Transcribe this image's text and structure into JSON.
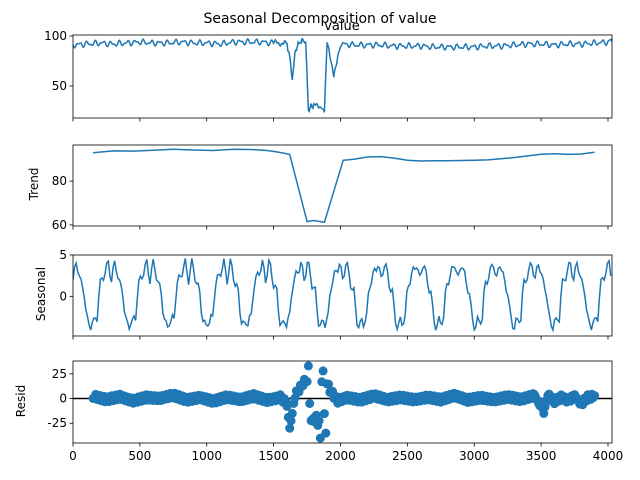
{
  "figure": {
    "title": "Seasonal Decomposition of value"
  },
  "colors": {
    "series": "#1f77b4",
    "axis": "#000000",
    "zero_line": "#000000",
    "background": "#ffffff"
  },
  "chart_data": [
    {
      "type": "line",
      "panel": "observed",
      "title": "value",
      "ylabel": "",
      "xlim": [
        0,
        4030
      ],
      "ylim": [
        18,
        101
      ],
      "yticks": [
        50,
        100
      ],
      "xtick_labels_shown": false,
      "series": [
        {
          "values_description_note_removed": null,
          "x": [
            0,
            100,
            200,
            300,
            400,
            500,
            600,
            700,
            800,
            900,
            1000,
            1100,
            1200,
            1300,
            1400,
            1500,
            1550,
            1600,
            1620,
            1640,
            1660,
            1700,
            1740,
            1760,
            1780,
            1800,
            1850,
            1880,
            1900,
            1950,
            2000,
            2100,
            2200,
            2300,
            2400,
            2500,
            2600,
            2700,
            2800,
            2900,
            3000,
            3100,
            3200,
            3300,
            3400,
            3500,
            3600,
            3700,
            3800,
            3900,
            4000,
            4030
          ],
          "y": [
            91,
            92,
            93,
            92,
            93,
            94,
            93,
            93,
            94,
            93,
            93,
            92,
            94,
            94,
            94,
            93,
            93,
            92,
            80,
            55,
            85,
            95,
            95,
            25,
            30,
            30,
            30,
            25,
            95,
            60,
            92,
            91,
            91,
            91,
            90,
            90,
            90,
            89,
            89,
            89,
            89,
            90,
            90,
            91,
            92,
            92,
            91,
            92,
            92,
            93,
            94,
            94
          ]
        }
      ]
    },
    {
      "type": "line",
      "panel": "trend",
      "ylabel": "Trend",
      "xlim": [
        0,
        4030
      ],
      "ylim": [
        59.5,
        96.5
      ],
      "yticks": [
        60,
        80
      ],
      "xtick_labels_shown": false,
      "series": [
        {
          "x": [
            150,
            300,
            450,
            600,
            750,
            900,
            1050,
            1200,
            1350,
            1450,
            1530,
            1620,
            1750,
            1800,
            1880,
            2020,
            2100,
            2200,
            2300,
            2400,
            2500,
            2600,
            2700,
            2800,
            2900,
            3000,
            3100,
            3200,
            3300,
            3400,
            3500,
            3600,
            3700,
            3800,
            3900
          ],
          "y": [
            93,
            93.8,
            93.7,
            94.1,
            94.6,
            94.2,
            94.0,
            94.6,
            94.4,
            94.0,
            93.3,
            92.2,
            61.5,
            62.0,
            61.2,
            89.5,
            90.0,
            91.0,
            91.2,
            90.5,
            89.5,
            89.2,
            89.3,
            89.3,
            89.4,
            89.5,
            89.7,
            90.2,
            90.8,
            91.5,
            92.3,
            92.5,
            92.2,
            92.4,
            93.2
          ]
        }
      ]
    },
    {
      "type": "line",
      "panel": "seasonal",
      "ylabel": "Seasonal",
      "xlim": [
        0,
        4030
      ],
      "ylim": [
        -4.8,
        5.0
      ],
      "yticks": [
        0,
        5
      ],
      "xtick_labels_shown": false,
      "period_estimate": 288,
      "series": [
        {
          "pattern_note_removed": null,
          "profile": [
            2,
            3,
            4,
            3.5,
            2.5,
            1.5,
            1,
            0.5,
            -1.5,
            -3,
            -3.5,
            -3.5,
            -3,
            -3.2,
            -2.8,
            -2.5,
            0,
            1.5,
            2,
            2.5,
            3,
            3.5,
            4,
            3
          ]
        }
      ]
    },
    {
      "type": "scatter",
      "panel": "resid",
      "ylabel": "Resid",
      "xlabel": "",
      "xlim": [
        0,
        4030
      ],
      "ylim": [
        -45,
        38
      ],
      "yticks": [
        -25,
        0,
        25
      ],
      "xticks": [
        0,
        500,
        1000,
        1500,
        2000,
        2500,
        3000,
        3500,
        4000
      ],
      "xtick_labels": [
        "0",
        "500",
        "1000",
        "1500",
        "2000",
        "2500",
        "3000",
        "3500",
        "4000"
      ],
      "zero_line": true,
      "series": [
        {
          "x": [
            150,
            250,
            350,
            450,
            550,
            650,
            750,
            850,
            950,
            1050,
            1150,
            1250,
            1350,
            1450,
            1550,
            1600,
            1620,
            1640,
            1660,
            1680,
            1700,
            1720,
            1740,
            1760,
            1770,
            1780,
            1790,
            1800,
            1810,
            1820,
            1830,
            1840,
            1850,
            1860,
            1870,
            1880,
            1890,
            1900,
            1920,
            1950,
            1980,
            2050,
            2150,
            2250,
            2350,
            2450,
            2550,
            2650,
            2750,
            2850,
            2950,
            3050,
            3150,
            3250,
            3350,
            3450,
            3500,
            3520,
            3550,
            3600,
            3650,
            3700,
            3750,
            3800,
            3850,
            3900
          ],
          "y": [
            3,
            -2,
            4,
            -3,
            2,
            -1,
            5,
            -2,
            3,
            -4,
            2,
            -3,
            4,
            -2,
            3,
            -8,
            -30,
            -15,
            5,
            12,
            18,
            25,
            30,
            33,
            -5,
            -35,
            -40,
            -30,
            -38,
            -33,
            -42,
            -36,
            -40,
            32,
            28,
            -30,
            -35,
            25,
            15,
            5,
            -3,
            3,
            -2,
            4,
            -3,
            2,
            -1,
            3,
            -2,
            4,
            -3,
            2,
            -1,
            3,
            -2,
            4,
            -10,
            -15,
            5,
            -4,
            3,
            -2,
            4,
            -8,
            2,
            3
          ]
        }
      ]
    }
  ]
}
